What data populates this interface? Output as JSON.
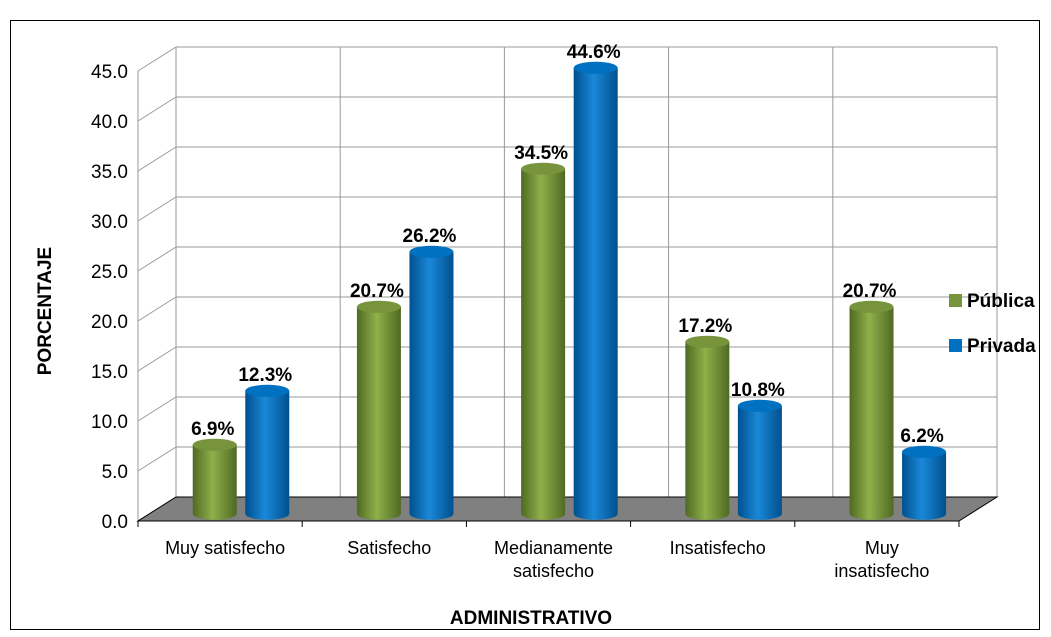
{
  "chart_data": {
    "type": "bar",
    "title": "",
    "xlabel": "ADMINISTRATIVO",
    "ylabel": "PORCENTAJE",
    "ylim": [
      0,
      45
    ],
    "ytick_step": 5,
    "grid": true,
    "legend_position": "right",
    "categories": [
      [
        "Muy satisfecho"
      ],
      [
        "Satisfecho"
      ],
      [
        "Medianamente",
        "satisfecho"
      ],
      [
        "Insatisfecho"
      ],
      [
        "Muy",
        "insatisfecho"
      ]
    ],
    "series": [
      {
        "name": "Pública",
        "color": "#77933C",
        "values": [
          6.9,
          20.7,
          34.5,
          17.2,
          20.7
        ],
        "labels": [
          "6.9%",
          "20.7%",
          "34.5%",
          "17.2%",
          "20.7%"
        ]
      },
      {
        "name": "Privada",
        "color": "#0070C0",
        "values": [
          12.3,
          26.2,
          44.6,
          10.8,
          6.2
        ],
        "labels": [
          "12.3%",
          "26.2%",
          "44.6%",
          "10.8%",
          "6.2%"
        ]
      }
    ],
    "floor_color": "#808080"
  }
}
